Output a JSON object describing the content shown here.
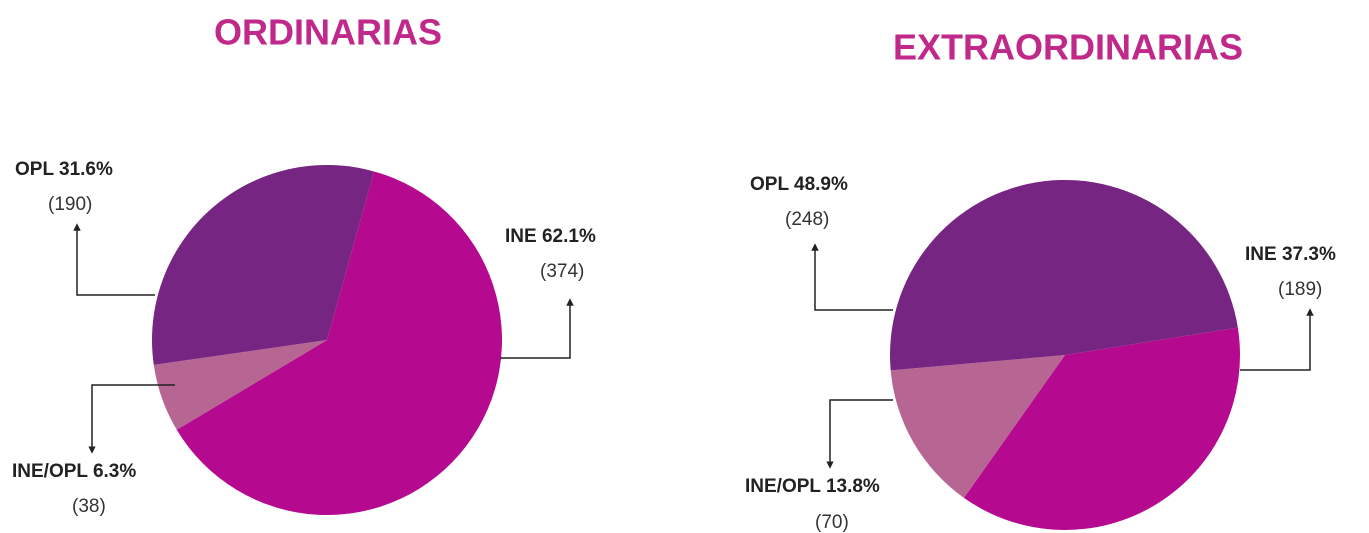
{
  "chart_data": [
    {
      "type": "pie",
      "title": "ORDINARIAS",
      "categories": [
        "INE",
        "INE/OPL",
        "OPL"
      ],
      "values": [
        62.1,
        6.3,
        31.6
      ],
      "value_labels": [
        "62.1%",
        "6.3%",
        "31.6%"
      ],
      "counts": [
        374,
        38,
        190
      ],
      "count_labels": [
        "(374)",
        "(38)",
        "(190)"
      ],
      "colors": [
        "#b5098f",
        "#b76593",
        "#772582"
      ]
    },
    {
      "type": "pie",
      "title": "EXTRAORDINARIAS",
      "categories": [
        "INE",
        "INE/OPL",
        "OPL"
      ],
      "values": [
        37.3,
        13.8,
        48.9
      ],
      "value_labels": [
        "37.3%",
        "13.8%",
        "48.9%"
      ],
      "counts": [
        189,
        70,
        248
      ],
      "count_labels": [
        "(189)",
        "(70)",
        "(248)"
      ],
      "colors": [
        "#b5098f",
        "#b76593",
        "#772582"
      ]
    }
  ]
}
